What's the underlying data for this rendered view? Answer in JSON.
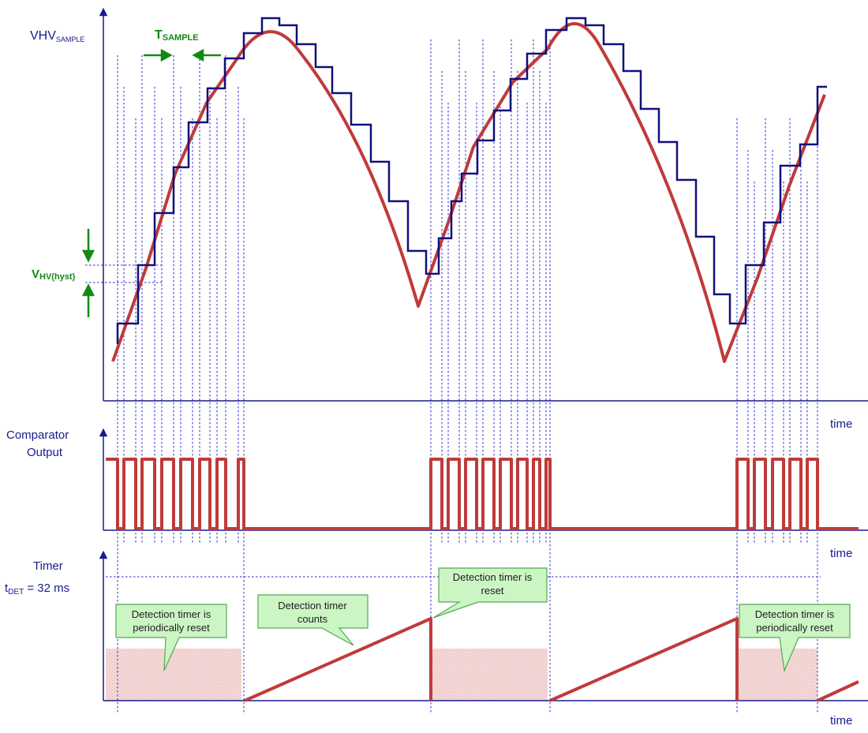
{
  "labels": {
    "vhv_main": "VHV",
    "vhv_sub": "SAMPLE",
    "tsample_main": "T",
    "tsample_sub": "SAMPLE",
    "vhyst_main": "V",
    "vhyst_sub": "HV(hyst)",
    "time_1": "time",
    "time_2": "time",
    "time_3": "time",
    "comparator_line1": "Comparator",
    "comparator_line2": "Output",
    "timer": "Timer",
    "tdet_main": "t",
    "tdet_sub": "DET",
    "tdet_value": " = 32 ms"
  },
  "callouts": {
    "periodic_left": [
      "Detection timer is",
      "periodically reset"
    ],
    "counts": [
      "Detection timer",
      "counts"
    ],
    "reset": [
      "Detection timer is",
      "reset"
    ],
    "periodic_right": [
      "Detection timer is",
      "periodically reset"
    ]
  },
  "colors": {
    "axis": "#1a1a8c",
    "red_signal": "#c03a3a",
    "sampled_signal": "#10107a",
    "dashed_guides": "#2b2bd6",
    "annotation_green": "#128a12",
    "callout_fill": "#ccf5c4"
  }
}
